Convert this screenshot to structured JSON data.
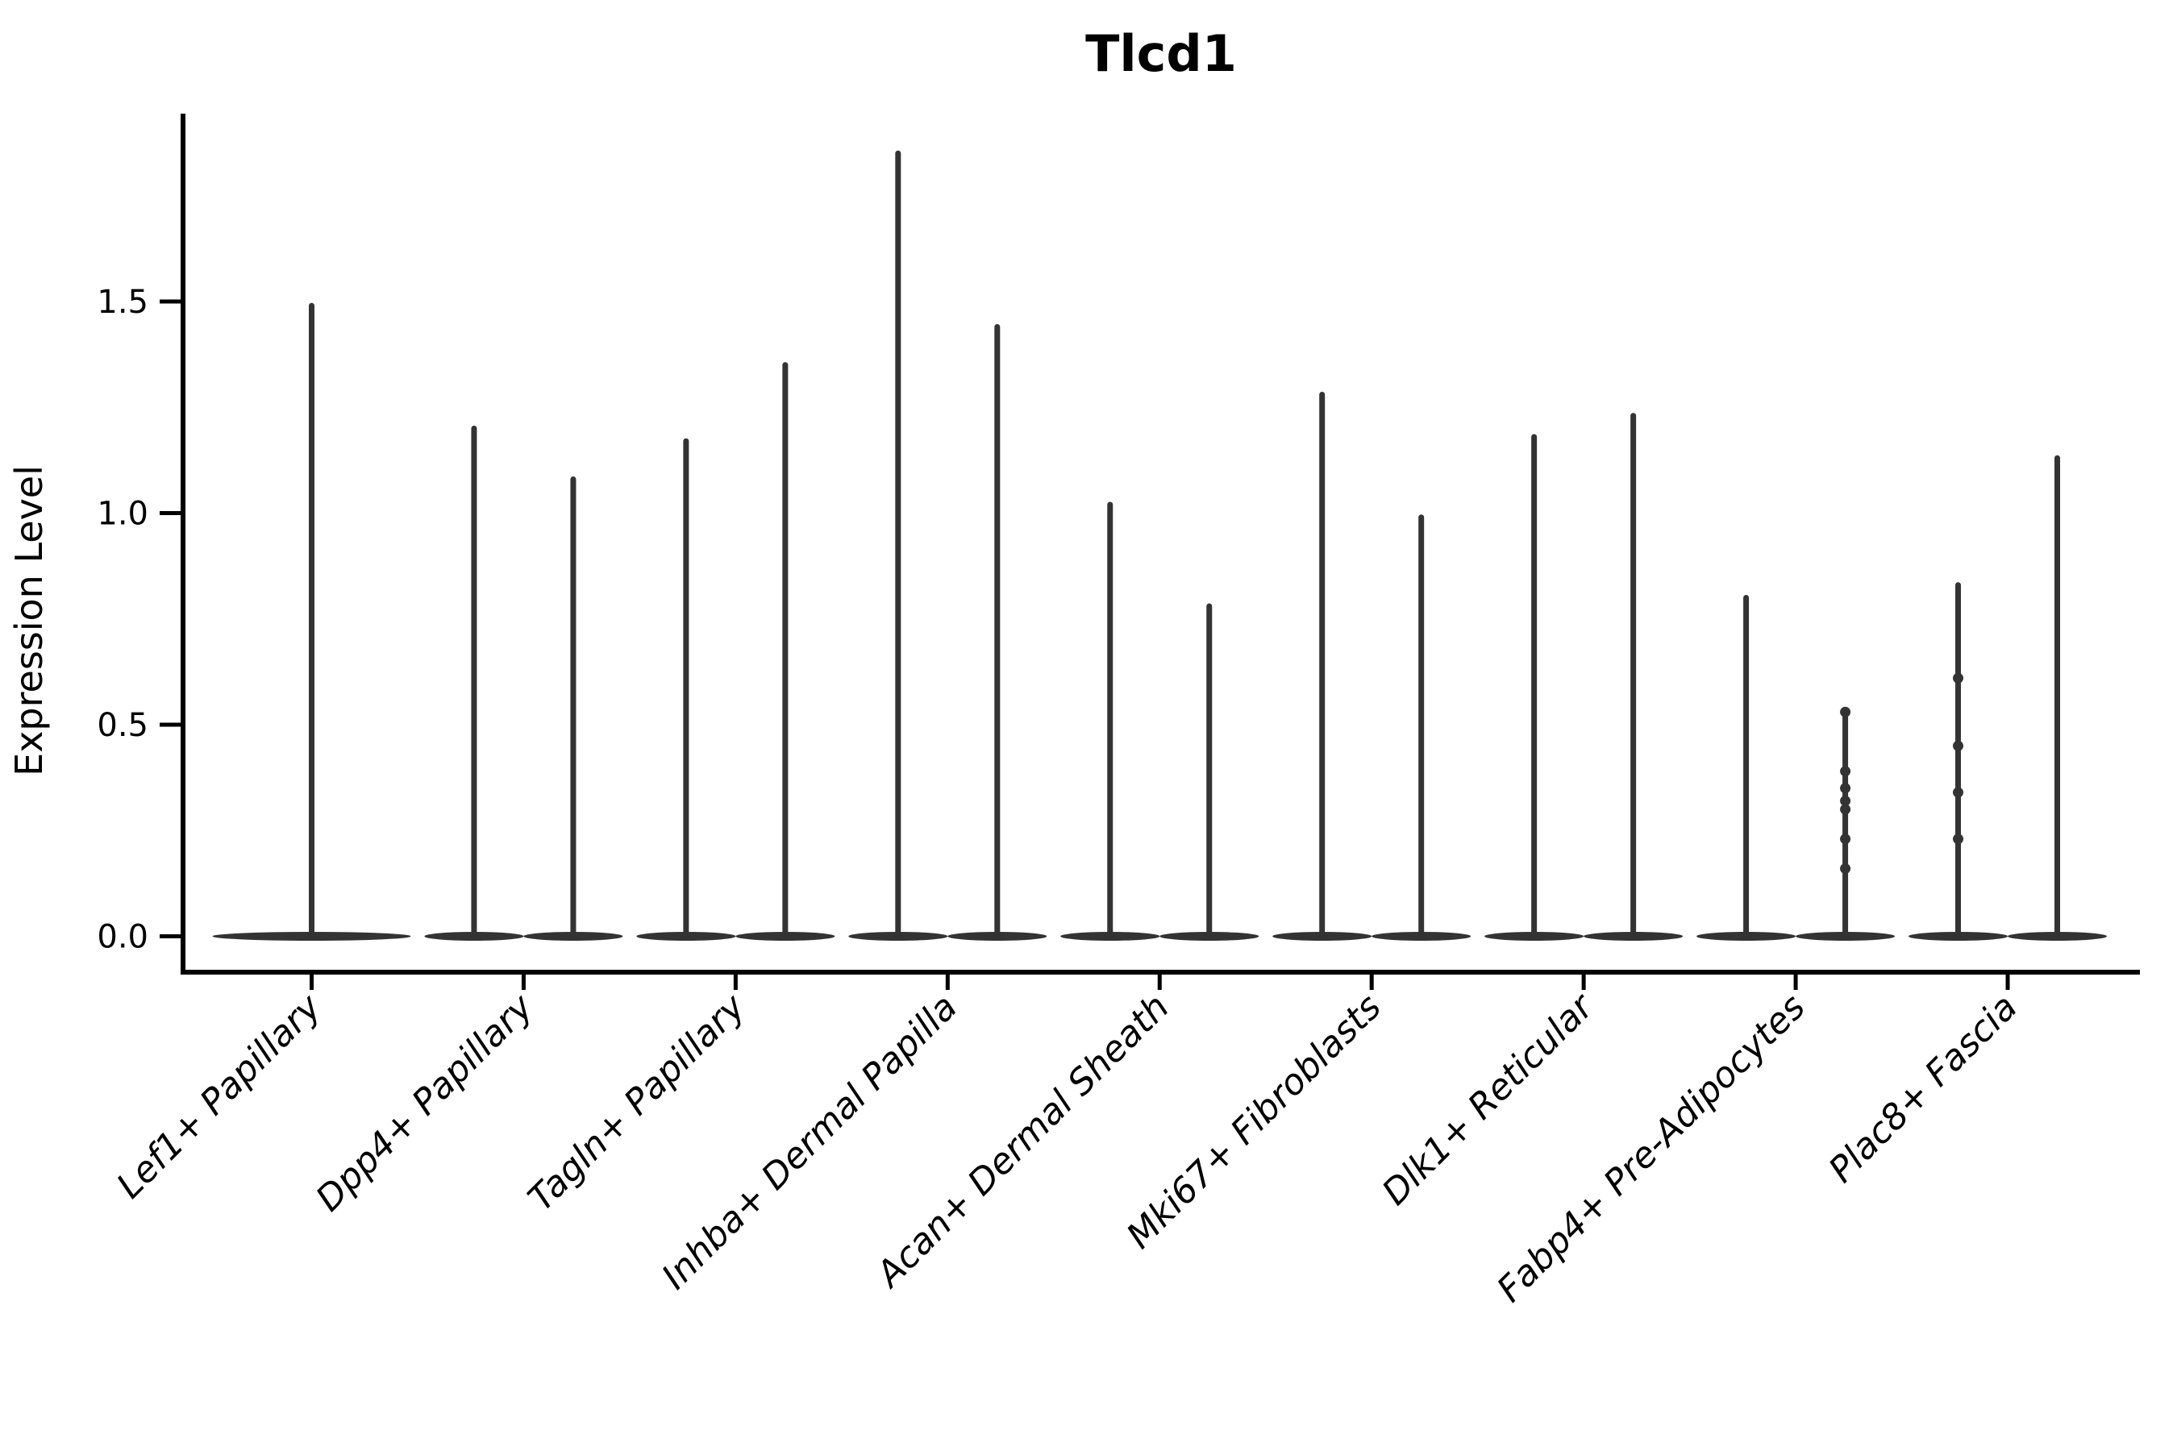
{
  "chart_data": {
    "type": "violin",
    "title": "Tlcd1",
    "ylabel": "Expression Level",
    "xlabel": "",
    "yticks": [
      "0.0",
      "0.5",
      "1.0",
      "1.5"
    ],
    "ytick_values": [
      0.0,
      0.5,
      1.0,
      1.5
    ],
    "ylim": [
      -0.09,
      1.94
    ],
    "grid": false,
    "legend": "none",
    "line_color": "#333333",
    "axis_color": "#000000",
    "x_label_rotation_deg": 45,
    "categories": [
      "Lef1+ Papillary",
      "Dpp4+ Papillary",
      "Tagln+ Papillary",
      "Inhba+ Dermal Papilla",
      "Acan+ Dermal Sheath",
      "Mki67+ Fibroblasts",
      "Dlk1+ Reticular",
      "Fabp4+ Pre-Adipocytes",
      "Plac8+ Fascia"
    ],
    "groups": [
      {
        "category": "Lef1+ Papillary",
        "violins": [
          {
            "position": "center",
            "max": 1.49,
            "points": []
          }
        ]
      },
      {
        "category": "Dpp4+ Papillary",
        "violins": [
          {
            "position": "left",
            "max": 1.2,
            "points": []
          },
          {
            "position": "right",
            "max": 1.08,
            "points": []
          }
        ]
      },
      {
        "category": "Tagln+ Papillary",
        "violins": [
          {
            "position": "left",
            "max": 1.17,
            "points": []
          },
          {
            "position": "right",
            "max": 1.35,
            "points": []
          }
        ]
      },
      {
        "category": "Inhba+ Dermal Papilla",
        "violins": [
          {
            "position": "left",
            "max": 1.85,
            "points": []
          },
          {
            "position": "right",
            "max": 1.44,
            "points": []
          }
        ]
      },
      {
        "category": "Acan+ Dermal Sheath",
        "violins": [
          {
            "position": "left",
            "max": 1.02,
            "points": []
          },
          {
            "position": "right",
            "max": 0.78,
            "points": []
          }
        ]
      },
      {
        "category": "Mki67+ Fibroblasts",
        "violins": [
          {
            "position": "left",
            "max": 1.28,
            "points": []
          },
          {
            "position": "right",
            "max": 0.99,
            "points": []
          }
        ]
      },
      {
        "category": "Dlk1+ Reticular",
        "violins": [
          {
            "position": "left",
            "max": 1.18,
            "points": []
          },
          {
            "position": "right",
            "max": 1.23,
            "points": []
          }
        ]
      },
      {
        "category": "Fabp4+ Pre-Adipocytes",
        "violins": [
          {
            "position": "left",
            "max": 0.8,
            "points": []
          },
          {
            "position": "right",
            "max": 0.53,
            "points": [
              0.53,
              0.39,
              0.35,
              0.32,
              0.3,
              0.23,
              0.16
            ]
          }
        ]
      },
      {
        "category": "Plac8+ Fascia",
        "violins": [
          {
            "position": "left",
            "max": 0.83,
            "points": [
              0.61,
              0.45,
              0.34,
              0.23
            ]
          },
          {
            "position": "right",
            "max": 1.13,
            "points": []
          }
        ]
      }
    ]
  }
}
